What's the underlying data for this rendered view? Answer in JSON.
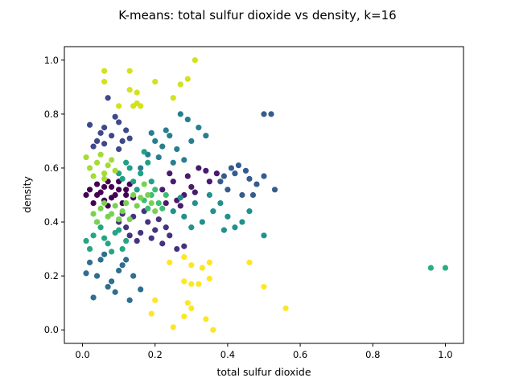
{
  "chart_data": {
    "type": "scatter",
    "title": "K-means: total sulfur dioxide vs density, k=16",
    "xlabel": "total sulfur dioxide",
    "ylabel": "density",
    "xlim": [
      -0.05,
      1.05
    ],
    "ylim": [
      -0.05,
      1.05
    ],
    "xticks": [
      "0.0",
      "0.2",
      "0.4",
      "0.6",
      "0.8",
      "1.0"
    ],
    "yticks": [
      "0.0",
      "0.2",
      "0.4",
      "0.6",
      "0.8",
      "1.0"
    ],
    "grid": false,
    "legend": "none",
    "colormap": "viridis",
    "clusters": [
      {
        "color": "#440154",
        "points": [
          [
            0.02,
            0.52
          ],
          [
            0.04,
            0.5
          ],
          [
            0.06,
            0.53
          ],
          [
            0.08,
            0.49
          ],
          [
            0.1,
            0.52
          ],
          [
            0.12,
            0.5
          ],
          [
            0.03,
            0.47
          ],
          [
            0.07,
            0.55
          ],
          [
            0.11,
            0.47
          ],
          [
            0.13,
            0.54
          ],
          [
            0.05,
            0.51
          ],
          [
            0.09,
            0.5
          ],
          [
            0.14,
            0.49
          ],
          [
            0.01,
            0.5
          ],
          [
            0.06,
            0.48
          ],
          [
            0.1,
            0.55
          ],
          [
            0.08,
            0.53
          ],
          [
            0.12,
            0.52
          ],
          [
            0.04,
            0.54
          ],
          [
            0.07,
            0.46
          ]
        ]
      },
      {
        "color": "#481b6d",
        "points": [
          [
            0.22,
            0.52
          ],
          [
            0.25,
            0.55
          ],
          [
            0.28,
            0.5
          ],
          [
            0.3,
            0.53
          ],
          [
            0.24,
            0.58
          ],
          [
            0.27,
            0.46
          ],
          [
            0.32,
            0.6
          ],
          [
            0.35,
            0.55
          ],
          [
            0.37,
            0.58
          ],
          [
            0.29,
            0.57
          ],
          [
            0.26,
            0.48
          ],
          [
            0.31,
            0.51
          ],
          [
            0.34,
            0.59
          ],
          [
            0.23,
            0.47
          ]
        ]
      },
      {
        "color": "#46327e",
        "points": [
          [
            0.1,
            0.4
          ],
          [
            0.12,
            0.38
          ],
          [
            0.14,
            0.42
          ],
          [
            0.16,
            0.36
          ],
          [
            0.18,
            0.4
          ],
          [
            0.2,
            0.37
          ],
          [
            0.22,
            0.32
          ],
          [
            0.24,
            0.35
          ],
          [
            0.26,
            0.3
          ],
          [
            0.15,
            0.33
          ],
          [
            0.17,
            0.44
          ],
          [
            0.21,
            0.41
          ],
          [
            0.13,
            0.35
          ],
          [
            0.19,
            0.34
          ],
          [
            0.28,
            0.31
          ],
          [
            0.11,
            0.43
          ],
          [
            0.23,
            0.38
          ]
        ]
      },
      {
        "color": "#3e4989",
        "points": [
          [
            0.04,
            0.7
          ],
          [
            0.06,
            0.75
          ],
          [
            0.08,
            0.72
          ],
          [
            0.1,
            0.77
          ],
          [
            0.03,
            0.68
          ],
          [
            0.12,
            0.74
          ],
          [
            0.09,
            0.79
          ],
          [
            0.05,
            0.73
          ],
          [
            0.07,
            0.86
          ],
          [
            0.11,
            0.7
          ],
          [
            0.02,
            0.76
          ],
          [
            0.13,
            0.71
          ],
          [
            0.06,
            0.69
          ],
          [
            0.1,
            0.67
          ]
        ]
      },
      {
        "color": "#365c8d",
        "points": [
          [
            0.38,
            0.55
          ],
          [
            0.4,
            0.52
          ],
          [
            0.42,
            0.58
          ],
          [
            0.44,
            0.5
          ],
          [
            0.46,
            0.56
          ],
          [
            0.48,
            0.54
          ],
          [
            0.5,
            0.57
          ],
          [
            0.41,
            0.6
          ],
          [
            0.45,
            0.59
          ],
          [
            0.52,
            0.8
          ],
          [
            0.5,
            0.8
          ],
          [
            0.53,
            0.52
          ],
          [
            0.47,
            0.5
          ],
          [
            0.43,
            0.61
          ],
          [
            0.39,
            0.57
          ]
        ]
      },
      {
        "color": "#2e6e8e",
        "points": [
          [
            0.02,
            0.25
          ],
          [
            0.04,
            0.2
          ],
          [
            0.06,
            0.28
          ],
          [
            0.08,
            0.18
          ],
          [
            0.1,
            0.22
          ],
          [
            0.12,
            0.26
          ],
          [
            0.14,
            0.2
          ],
          [
            0.16,
            0.15
          ],
          [
            0.03,
            0.12
          ],
          [
            0.07,
            0.16
          ],
          [
            0.13,
            0.11
          ],
          [
            0.01,
            0.21
          ],
          [
            0.05,
            0.26
          ],
          [
            0.11,
            0.24
          ],
          [
            0.09,
            0.14
          ]
        ]
      },
      {
        "color": "#277f8e",
        "points": [
          [
            0.16,
            0.6
          ],
          [
            0.18,
            0.65
          ],
          [
            0.2,
            0.7
          ],
          [
            0.22,
            0.68
          ],
          [
            0.24,
            0.72
          ],
          [
            0.26,
            0.67
          ],
          [
            0.28,
            0.63
          ],
          [
            0.3,
            0.7
          ],
          [
            0.32,
            0.75
          ],
          [
            0.34,
            0.72
          ],
          [
            0.19,
            0.73
          ],
          [
            0.25,
            0.62
          ],
          [
            0.29,
            0.78
          ],
          [
            0.21,
            0.64
          ],
          [
            0.27,
            0.8
          ],
          [
            0.23,
            0.74
          ]
        ]
      },
      {
        "color": "#21918c",
        "points": [
          [
            0.25,
            0.44
          ],
          [
            0.28,
            0.42
          ],
          [
            0.31,
            0.47
          ],
          [
            0.33,
            0.4
          ],
          [
            0.36,
            0.44
          ],
          [
            0.38,
            0.47
          ],
          [
            0.4,
            0.42
          ],
          [
            0.42,
            0.38
          ],
          [
            0.44,
            0.4
          ],
          [
            0.3,
            0.38
          ],
          [
            0.35,
            0.5
          ],
          [
            0.39,
            0.37
          ],
          [
            0.5,
            0.35
          ],
          [
            0.27,
            0.49
          ],
          [
            0.46,
            0.44
          ]
        ]
      },
      {
        "color": "#1fa188",
        "points": [
          [
            0.1,
            0.58
          ],
          [
            0.12,
            0.62
          ],
          [
            0.14,
            0.55
          ],
          [
            0.16,
            0.58
          ],
          [
            0.18,
            0.62
          ],
          [
            0.13,
            0.6
          ],
          [
            0.15,
            0.52
          ],
          [
            0.11,
            0.56
          ],
          [
            0.17,
            0.66
          ],
          [
            0.19,
            0.55
          ]
        ]
      },
      {
        "color": "#29af7f",
        "points": [
          [
            0.96,
            0.23
          ],
          [
            1.0,
            0.23
          ]
        ]
      },
      {
        "color": "#25a584",
        "points": [
          [
            0.01,
            0.33
          ],
          [
            0.03,
            0.35
          ],
          [
            0.05,
            0.38
          ],
          [
            0.07,
            0.32
          ],
          [
            0.09,
            0.36
          ],
          [
            0.11,
            0.3
          ],
          [
            0.02,
            0.3
          ],
          [
            0.06,
            0.34
          ],
          [
            0.04,
            0.4
          ],
          [
            0.08,
            0.29
          ],
          [
            0.1,
            0.37
          ],
          [
            0.12,
            0.33
          ]
        ]
      },
      {
        "color": "#3dbc74",
        "points": [
          [
            0.17,
            0.48
          ],
          [
            0.19,
            0.5
          ],
          [
            0.21,
            0.47
          ],
          [
            0.23,
            0.5
          ],
          [
            0.18,
            0.45
          ],
          [
            0.2,
            0.52
          ],
          [
            0.22,
            0.45
          ]
        ]
      },
      {
        "color": "#7ad151",
        "points": [
          [
            0.03,
            0.43
          ],
          [
            0.05,
            0.45
          ],
          [
            0.07,
            0.42
          ],
          [
            0.09,
            0.46
          ],
          [
            0.11,
            0.44
          ],
          [
            0.13,
            0.41
          ],
          [
            0.04,
            0.4
          ],
          [
            0.06,
            0.47
          ],
          [
            0.08,
            0.43
          ],
          [
            0.1,
            0.41
          ],
          [
            0.12,
            0.47
          ],
          [
            0.15,
            0.46
          ],
          [
            0.18,
            0.5
          ],
          [
            0.2,
            0.44
          ],
          [
            0.16,
            0.49
          ],
          [
            0.14,
            0.5
          ],
          [
            0.19,
            0.47
          ],
          [
            0.17,
            0.54
          ]
        ]
      },
      {
        "color": "#a5db36",
        "points": [
          [
            0.02,
            0.6
          ],
          [
            0.04,
            0.62
          ],
          [
            0.06,
            0.58
          ],
          [
            0.08,
            0.63
          ],
          [
            0.03,
            0.57
          ],
          [
            0.05,
            0.65
          ],
          [
            0.07,
            0.61
          ],
          [
            0.09,
            0.59
          ],
          [
            0.01,
            0.64
          ],
          [
            0.06,
            0.56
          ]
        ]
      },
      {
        "color": "#d2e21b",
        "points": [
          [
            0.06,
            0.96
          ],
          [
            0.06,
            0.92
          ],
          [
            0.13,
            0.96
          ],
          [
            0.2,
            0.92
          ],
          [
            0.27,
            0.91
          ],
          [
            0.29,
            0.93
          ],
          [
            0.13,
            0.89
          ],
          [
            0.15,
            0.88
          ],
          [
            0.15,
            0.84
          ],
          [
            0.16,
            0.83
          ],
          [
            0.14,
            0.83
          ],
          [
            0.1,
            0.83
          ],
          [
            0.25,
            0.86
          ],
          [
            0.31,
            1.0
          ]
        ]
      },
      {
        "color": "#fde725",
        "points": [
          [
            0.2,
            0.11
          ],
          [
            0.19,
            0.06
          ],
          [
            0.25,
            0.01
          ],
          [
            0.28,
            0.05
          ],
          [
            0.29,
            0.1
          ],
          [
            0.3,
            0.08
          ],
          [
            0.34,
            0.04
          ],
          [
            0.36,
            0.0
          ],
          [
            0.28,
            0.18
          ],
          [
            0.3,
            0.17
          ],
          [
            0.32,
            0.17
          ],
          [
            0.35,
            0.19
          ],
          [
            0.28,
            0.27
          ],
          [
            0.33,
            0.23
          ],
          [
            0.35,
            0.25
          ],
          [
            0.24,
            0.25
          ],
          [
            0.3,
            0.24
          ],
          [
            0.46,
            0.25
          ],
          [
            0.5,
            0.16
          ],
          [
            0.56,
            0.08
          ]
        ]
      }
    ]
  }
}
